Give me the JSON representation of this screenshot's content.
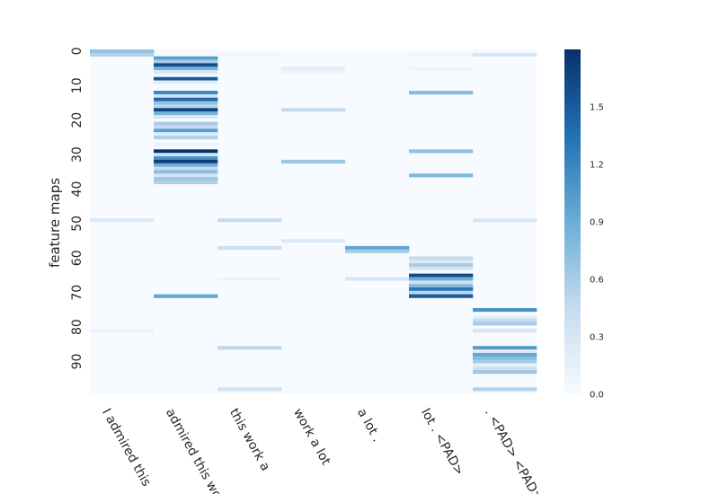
{
  "chart_data": {
    "type": "heatmap",
    "title": "",
    "xlabel": "",
    "ylabel": "feature maps",
    "colormap": "Blues",
    "colors": {
      "low": "#f7fbff",
      "mid1": "#c6dbef",
      "mid2": "#6baed6",
      "mid3": "#2171b5",
      "high": "#08306b"
    },
    "n_rows": 100,
    "categories": [
      "I admired this",
      "admired this work",
      "this work a",
      "work a lot",
      "a lot .",
      "lot . <PAD>",
      ". <PAD> <PAD>"
    ],
    "y_ticks": [
      0,
      10,
      20,
      30,
      40,
      50,
      60,
      70,
      80,
      90
    ],
    "value_range": [
      0,
      1.8
    ],
    "colorbar_ticks": [
      "0.0",
      "0.3",
      "0.6",
      "0.9",
      "1.2",
      "1.5"
    ],
    "colorbar_tick_values": [
      0,
      0.3,
      0.6,
      0.9,
      1.2,
      1.5
    ],
    "default_value": 0,
    "columns": [
      {
        "cells": [
          [
            0,
            0.7
          ],
          [
            1,
            0.55
          ],
          [
            49,
            0.25
          ],
          [
            81,
            0.12
          ]
        ]
      },
      {
        "cells": [
          [
            2,
            1.0
          ],
          [
            3,
            0.6
          ],
          [
            4,
            1.6
          ],
          [
            5,
            0.85
          ],
          [
            6,
            0.3
          ],
          [
            8,
            1.5
          ],
          [
            9,
            0.2
          ],
          [
            12,
            1.2
          ],
          [
            13,
            0.35
          ],
          [
            14,
            1.4
          ],
          [
            15,
            0.7
          ],
          [
            16,
            0.5
          ],
          [
            17,
            1.65
          ],
          [
            18,
            0.85
          ],
          [
            19,
            0.3
          ],
          [
            21,
            0.6
          ],
          [
            22,
            0.45
          ],
          [
            23,
            1.0
          ],
          [
            24,
            0.2
          ],
          [
            25,
            0.55
          ],
          [
            27,
            0.1
          ],
          [
            29,
            1.8
          ],
          [
            30,
            0.35
          ],
          [
            31,
            1.1
          ],
          [
            32,
            1.7
          ],
          [
            33,
            0.9
          ],
          [
            34,
            0.45
          ],
          [
            35,
            0.75
          ],
          [
            36,
            0.3
          ],
          [
            37,
            0.65
          ],
          [
            38,
            0.55
          ],
          [
            71,
            0.95
          ]
        ]
      },
      {
        "cells": [
          [
            1,
            0.1
          ],
          [
            49,
            0.45
          ],
          [
            57,
            0.4
          ],
          [
            66,
            0.1
          ],
          [
            86,
            0.5
          ],
          [
            98,
            0.35
          ]
        ]
      },
      {
        "cells": [
          [
            5,
            0.2
          ],
          [
            6,
            0.1
          ],
          [
            17,
            0.45
          ],
          [
            32,
            0.65
          ],
          [
            55,
            0.25
          ]
        ]
      },
      {
        "cells": [
          [
            57,
            0.95
          ],
          [
            58,
            0.6
          ],
          [
            66,
            0.3
          ]
        ]
      },
      {
        "cells": [
          [
            1,
            0.1
          ],
          [
            5,
            0.1
          ],
          [
            12,
            0.75
          ],
          [
            29,
            0.7
          ],
          [
            36,
            0.8
          ],
          [
            60,
            0.45
          ],
          [
            61,
            0.25
          ],
          [
            62,
            0.6
          ],
          [
            63,
            0.3
          ],
          [
            65,
            1.6
          ],
          [
            66,
            0.9
          ],
          [
            67,
            0.35
          ],
          [
            68,
            0.75
          ],
          [
            69,
            1.3
          ],
          [
            70,
            0.5
          ],
          [
            71,
            1.5
          ]
        ]
      },
      {
        "cells": [
          [
            1,
            0.3
          ],
          [
            49,
            0.3
          ],
          [
            75,
            1.1
          ],
          [
            77,
            0.15
          ],
          [
            78,
            0.45
          ],
          [
            79,
            0.6
          ],
          [
            81,
            0.3
          ],
          [
            86,
            1.05
          ],
          [
            87,
            0.2
          ],
          [
            88,
            0.95
          ],
          [
            89,
            0.75
          ],
          [
            90,
            0.6
          ],
          [
            91,
            0.15
          ],
          [
            92,
            0.4
          ],
          [
            93,
            0.65
          ],
          [
            98,
            0.55
          ]
        ]
      }
    ]
  }
}
